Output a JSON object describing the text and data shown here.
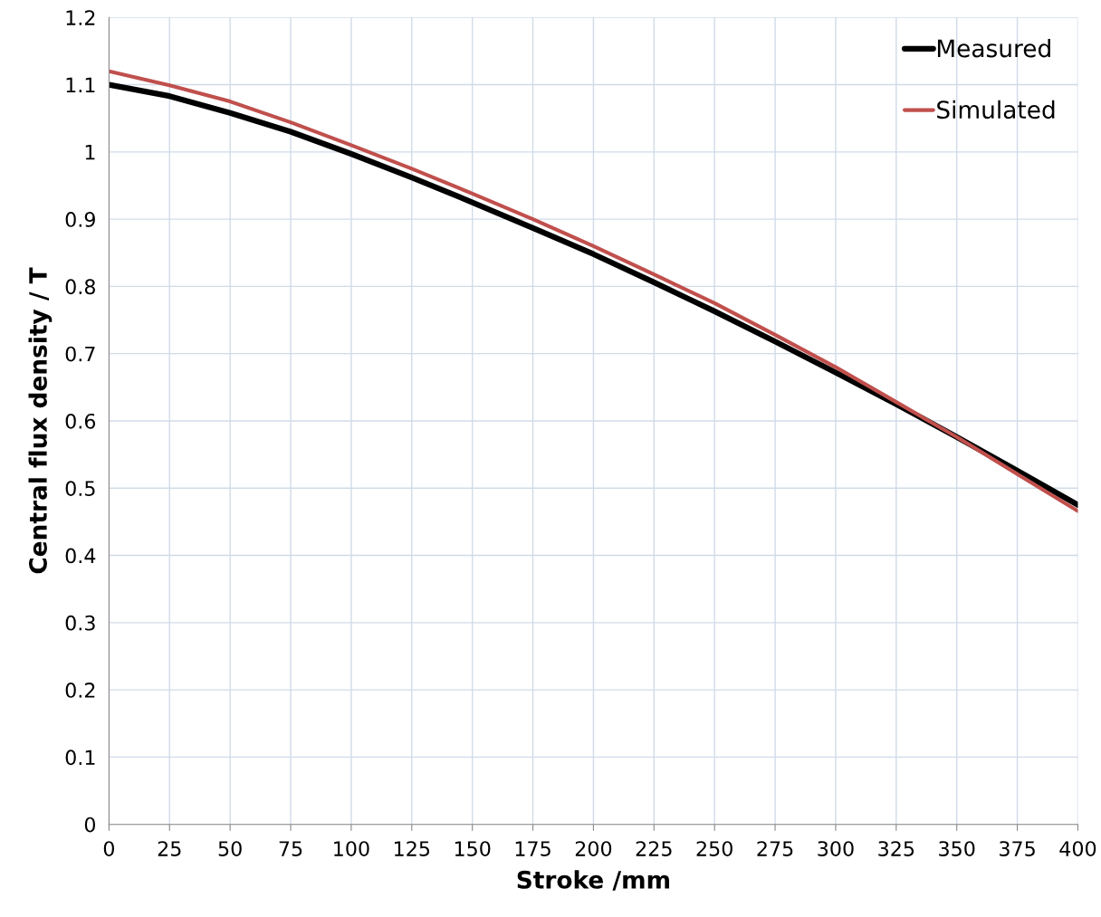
{
  "chart_data": {
    "type": "line",
    "xlabel": "Stroke /mm",
    "ylabel": "Central flux density / T",
    "x": [
      0,
      25,
      50,
      75,
      100,
      125,
      150,
      175,
      200,
      225,
      250,
      275,
      300,
      325,
      350,
      375,
      400
    ],
    "series": [
      {
        "name": "Measured",
        "color": "#000000",
        "values": [
          1.1,
          1.083,
          1.058,
          1.03,
          0.997,
          0.962,
          0.925,
          0.887,
          0.848,
          0.806,
          0.763,
          0.718,
          0.672,
          0.625,
          0.576,
          0.526,
          0.475
        ]
      },
      {
        "name": "Simulated",
        "color": "#c0504d",
        "values": [
          1.12,
          1.099,
          1.075,
          1.044,
          1.01,
          0.975,
          0.938,
          0.9,
          0.86,
          0.818,
          0.775,
          0.728,
          0.68,
          0.628,
          0.576,
          0.521,
          0.466
        ]
      }
    ],
    "xlim": [
      0,
      400
    ],
    "xticks": [
      0,
      25,
      50,
      75,
      100,
      125,
      150,
      175,
      200,
      225,
      250,
      275,
      300,
      325,
      350,
      375,
      400
    ],
    "ylim": [
      0,
      1.2
    ],
    "yticks": [
      0,
      0.1,
      0.2,
      0.3,
      0.4,
      0.5,
      0.6,
      0.7,
      0.8,
      0.9,
      1,
      1.1,
      1.2
    ],
    "grid": true,
    "legend": "top right",
    "marker": "none",
    "line_style": "solid"
  }
}
